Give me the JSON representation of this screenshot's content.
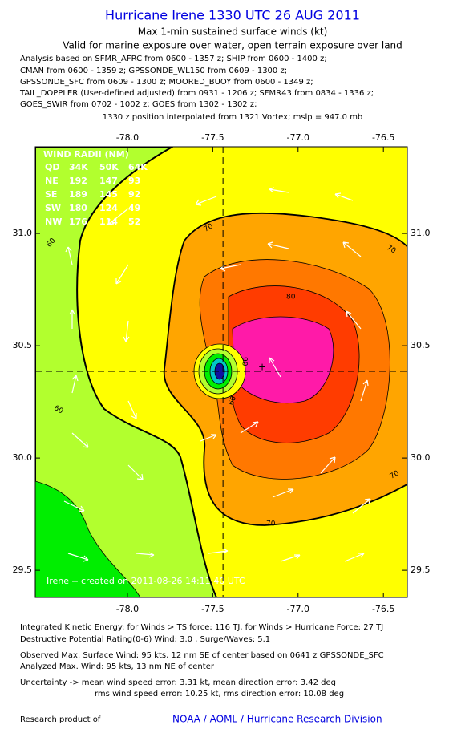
{
  "title": "Hurricane Irene 1330 UTC 26 AUG 2011",
  "subtitle": "Max 1-min sustained surface winds (kt)",
  "validity": "Valid for marine exposure over water, open terrain exposure over land",
  "analysis_lines": [
    "Analysis based on SFMR_AFRC from 0600 - 1357 z; SHIP from 0600 - 1400 z;",
    "CMAN from 0600 - 1359 z; GPSSONDE_WL150 from 0609 - 1300 z;",
    "GPSSONDE_SFC from 0609 - 1300 z; MOORED_BUOY from 0600 - 1349 z;",
    "TAIL_DOPPLER (User-defined adjusted) from 0931 - 1206 z; SFMR43 from 0834 - 1336 z;",
    "GOES_SWIR from 0702 - 1002 z; GOES from 1302 - 1302 z;"
  ],
  "position_note": "1330 z position interpolated from 1321 Vortex; mslp = 947.0 mb",
  "chart_data": {
    "type": "contour",
    "xlim": [
      -78.54,
      -76.36
    ],
    "ylim": [
      29.379,
      31.386
    ],
    "xticks": [
      {
        "value": -78.0,
        "label": "-78.0"
      },
      {
        "value": -77.5,
        "label": "-77.5"
      },
      {
        "value": -77.0,
        "label": "-77.0"
      },
      {
        "value": -76.5,
        "label": "-76.5"
      }
    ],
    "yticks": [
      {
        "value": 29.5,
        "label": "29.5"
      },
      {
        "value": 30.0,
        "label": "30.0"
      },
      {
        "value": 30.5,
        "label": "30.5"
      },
      {
        "value": 31.0,
        "label": "31.0"
      }
    ],
    "center": [
      -77.44,
      30.386
    ],
    "wind_radii": {
      "title": "WIND RADII (NM)",
      "header": [
        "QD",
        "34K",
        "50K",
        "64K"
      ],
      "rows": [
        [
          "NE",
          "192",
          "147",
          "93"
        ],
        [
          "SE",
          "189",
          "145",
          "92"
        ],
        [
          "SW",
          "180",
          "124",
          "49"
        ],
        [
          "NW",
          "176",
          "114",
          "52"
        ]
      ]
    },
    "contour_labels": [
      "60",
      "70",
      "70",
      "80",
      "90",
      "60",
      "60",
      "70",
      "70"
    ],
    "watermark": "Irene -- created on 2011-08-26 14:11:40 UTC"
  },
  "footer_lines": [
    "Integrated Kinetic Energy:  for Winds > TS force: 116 TJ,  for Winds > Hurricane Force: 27 TJ",
    "Destructive Potential Rating(0-6)   Wind: 3.0 , Surge/Waves: 5.1",
    "Observed Max. Surface Wind: 95 kts, 12 nm SE of center based on 0641 z GPSSONDE_SFC",
    "Analyzed Max. Wind: 95 kts, 13 nm NE of center",
    "Uncertainty -> mean wind speed error: 3.31 kt,   mean direction error: 3.42 deg",
    "rms wind speed error: 10.25 kt,   rms direction error: 10.08 deg"
  ],
  "credit_label": "Research product of",
  "credit_org": "NOAA / AOML / Hurricane Research Division"
}
